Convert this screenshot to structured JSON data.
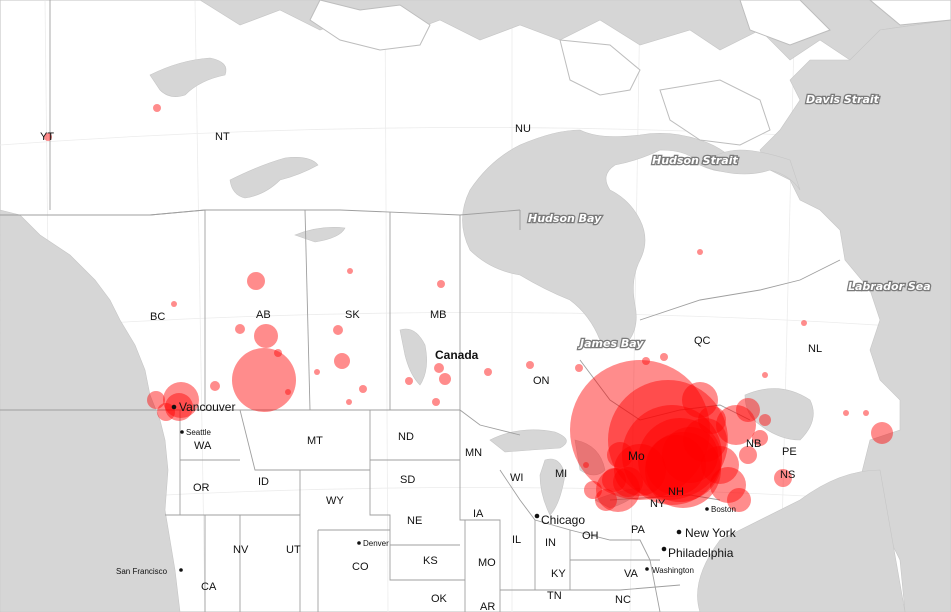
{
  "map": {
    "colors": {
      "bubble": "#ff0000",
      "water": "#d6d6d6",
      "land": "#ffffff",
      "border": "#9f9f9f"
    },
    "country_label": "Canada",
    "water_labels": [
      "Davis Strait",
      "Hudson Strait",
      "Hudson Bay",
      "Labrador Sea",
      "James Bay"
    ],
    "region_labels": {
      "yt": "YT",
      "nt": "NT",
      "nu": "NU",
      "bc": "BC",
      "ab": "AB",
      "sk": "SK",
      "mb": "MB",
      "on": "ON",
      "qc": "QC",
      "nl": "NL",
      "nb": "NB",
      "pe": "PE",
      "ns": "NS",
      "wa": "WA",
      "or": "OR",
      "ca": "CA",
      "id": "ID",
      "nv": "NV",
      "ut": "UT",
      "mt": "MT",
      "wy": "WY",
      "co": "CO",
      "nd": "ND",
      "sd": "SD",
      "ne": "NE",
      "ks": "KS",
      "ok": "OK",
      "mn": "MN",
      "ia": "IA",
      "mo": "MO",
      "ar": "AR",
      "wi": "WI",
      "il": "IL",
      "mi": "MI",
      "in": "IN",
      "oh": "OH",
      "ky": "KY",
      "tn": "TN",
      "pa": "PA",
      "ny": "NY",
      "va": "VA",
      "nc": "NC",
      "nh": "NH"
    },
    "cities": {
      "vancouver": "Vancouver",
      "seattle": "Seattle",
      "san_francisco": "San Francisco",
      "denver": "Denver",
      "chicago": "Chicago",
      "new_york": "New York",
      "boston": "Boston",
      "philadelphia": "Philadelphia",
      "washington": "Washington",
      "montreal": "Mo"
    },
    "bubble_sizes": [
      14,
      32,
      18,
      9,
      9,
      4,
      4,
      3,
      4,
      9,
      3,
      4,
      3,
      5,
      12,
      3,
      5,
      8,
      3,
      4,
      5,
      4,
      6,
      5,
      4,
      4,
      4,
      4,
      4,
      4,
      3,
      3,
      6,
      11,
      9,
      8,
      12,
      20,
      3,
      3,
      3,
      13,
      3,
      9,
      11,
      12,
      15,
      22,
      26,
      30,
      38,
      42,
      50,
      60,
      70,
      18,
      14,
      22,
      28,
      19,
      9,
      18,
      12
    ]
  }
}
